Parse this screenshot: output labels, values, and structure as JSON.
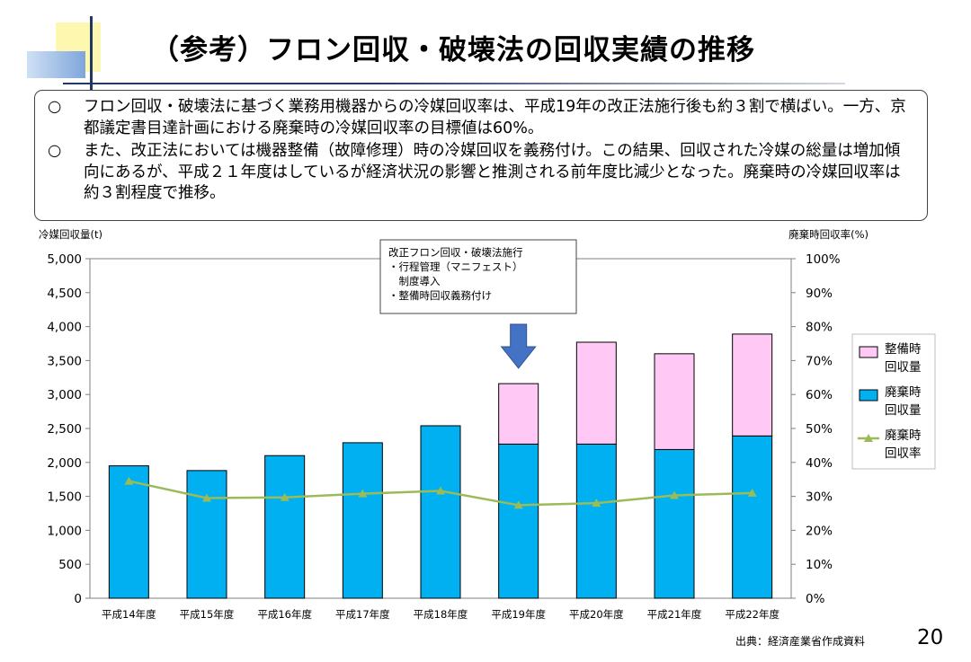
{
  "slide": {
    "title": "（参考）フロン回収・破壊法の回収実績の推移",
    "bullets": [
      {
        "mark": "○",
        "text": "フロン回収・破壊法に基づく業務用機器からの冷媒回収率は、平成19年の改正法施行後も約３割で横ばい。一方、京都議定書目達計画における廃棄時の冷媒回収率の目標値は60%。"
      },
      {
        "mark": "○",
        "text": "また、改正法においては機器整備（故障修理）時の冷媒回収を義務付け。この結果、回収された冷媒の総量は増加傾向にあるが、平成２１年度はしているが経済状況の影響と推測される前年度比減少となった。廃棄時の冷媒回収率は約３割程度で推移。"
      }
    ],
    "source": "出典：経済産業省作成資料",
    "page_number": "20"
  },
  "colors": {
    "disposal_bar": "#00b0f0",
    "maintenance_bar": "#ffc8f5",
    "rate_line": "#9bbb59",
    "arrow": "#4472c4",
    "bar_outline": "#000000",
    "frame": "#7f7f7f"
  },
  "chart_data": {
    "type": "bar",
    "stacked": true,
    "categories": [
      "平成14年度",
      "平成15年度",
      "平成16年度",
      "平成17年度",
      "平成18年度",
      "平成19年度",
      "平成20年度",
      "平成21年度",
      "平成22年度"
    ],
    "series": [
      {
        "name": "廃棄時回収量",
        "axis": "left",
        "kind": "bar",
        "values": [
          1950,
          1880,
          2100,
          2290,
          2540,
          2270,
          2270,
          2190,
          2390
        ]
      },
      {
        "name": "整備時回収量",
        "axis": "left",
        "kind": "bar",
        "values": [
          0,
          0,
          0,
          0,
          0,
          890,
          1500,
          1410,
          1500
        ]
      },
      {
        "name": "廃棄時回収率",
        "axis": "right",
        "kind": "line",
        "values": [
          34.5,
          29.5,
          29.7,
          30.8,
          31.6,
          27.4,
          28.0,
          30.3,
          31.0
        ]
      }
    ],
    "ylabel": "冷媒回収量(t)",
    "y2label": "廃棄時回収率(%)",
    "ylim": [
      0,
      5000
    ],
    "y2lim": [
      0,
      100
    ],
    "yticks": [
      "0",
      "500",
      "1,000",
      "1,500",
      "2,000",
      "2,500",
      "3,000",
      "3,500",
      "4,000",
      "4,500",
      "5,000"
    ],
    "y2ticks": [
      "0%",
      "10%",
      "20%",
      "30%",
      "40%",
      "50%",
      "60%",
      "70%",
      "80%",
      "90%",
      "100%"
    ],
    "legend_position": "right",
    "legend": [
      {
        "series": "整備時回収量",
        "lines": [
          "整備時",
          "回収量"
        ]
      },
      {
        "series": "廃棄時回収量",
        "lines": [
          "廃棄時",
          "回収量"
        ]
      },
      {
        "series": "廃棄時回収率",
        "lines": [
          "廃棄時",
          "回収率"
        ]
      }
    ],
    "annotation": {
      "target_category": "平成19年度",
      "lines": [
        "改正フロン回収・破壊法施行",
        "・行程管理（マニフェスト）",
        "　制度導入",
        "・整備時回収義務付け"
      ]
    },
    "grid": false
  }
}
